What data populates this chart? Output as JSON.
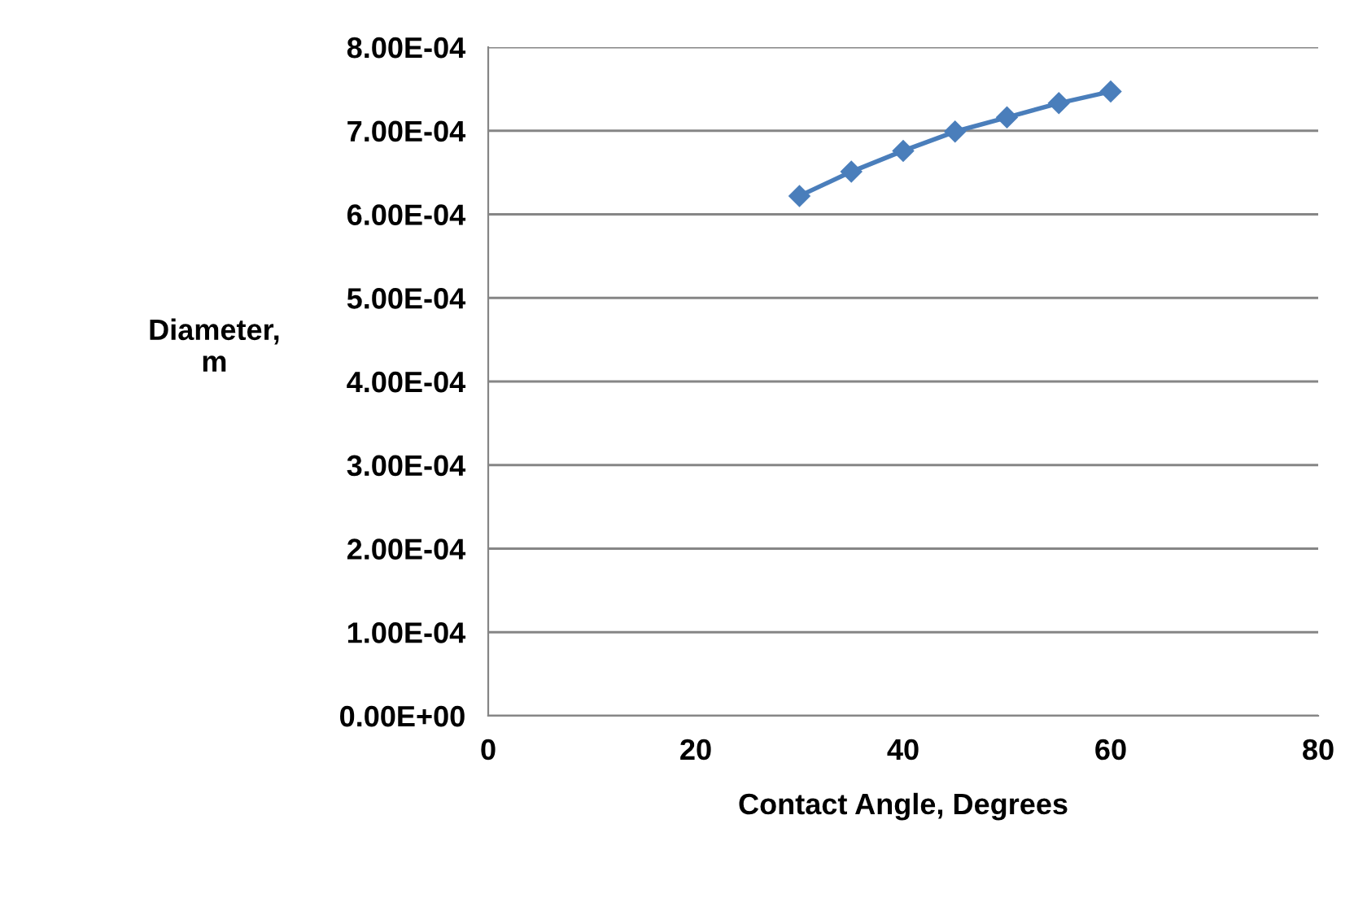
{
  "chart_data": {
    "type": "line",
    "xlabel": "Contact Angle, Degrees",
    "ylabel": "Diameter,\nm",
    "x": [
      30,
      35,
      40,
      45,
      50,
      55,
      60
    ],
    "series": [
      {
        "color": "#4a7ebb",
        "values": [
          0.000622,
          0.000651,
          0.000676,
          0.000699,
          0.000716,
          0.000733,
          0.000747
        ]
      }
    ],
    "xlim": [
      0,
      80
    ],
    "xticks": [
      0,
      20,
      40,
      60,
      80
    ],
    "ylim": [
      0,
      0.0008
    ],
    "yticks": [
      {
        "value": 0,
        "label": "0.00E+00"
      },
      {
        "value": 0.0001,
        "label": "1.00E-04"
      },
      {
        "value": 0.0002,
        "label": "2.00E-04"
      },
      {
        "value": 0.0003,
        "label": "3.00E-04"
      },
      {
        "value": 0.0004,
        "label": "4.00E-04"
      },
      {
        "value": 0.0005,
        "label": "5.00E-04"
      },
      {
        "value": 0.0006,
        "label": "6.00E-04"
      },
      {
        "value": 0.0007,
        "label": "7.00E-04"
      },
      {
        "value": 0.0008,
        "label": "8.00E-04"
      }
    ],
    "grid": "y",
    "marker": "diamond",
    "line_style": "solid"
  }
}
